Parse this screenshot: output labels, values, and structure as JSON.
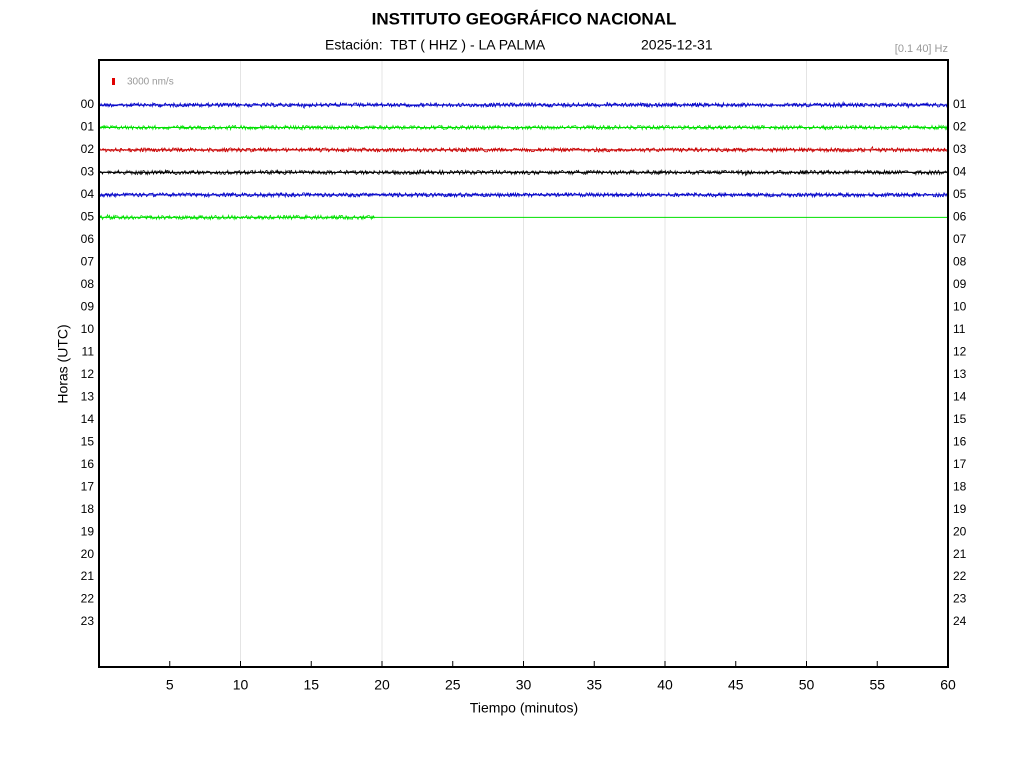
{
  "chart_data": {
    "type": "helicorder",
    "title": "INSTITUTO GEOGRÁFICO NACIONAL",
    "subtitle": "Estación:  TBT ( HHZ ) - LA PALMA",
    "date": "2025-12-31",
    "filter": "[0.1 40] Hz",
    "scale_label": "3000 nm/s",
    "scale_color": "#e00000",
    "xlabel": "Tiempo (minutos)",
    "ylabel": "Horas (UTC)",
    "xlim": [
      0,
      60
    ],
    "xticks": [
      5,
      10,
      15,
      20,
      25,
      30,
      35,
      40,
      45,
      50,
      55,
      60
    ],
    "xgrid": [
      10,
      20,
      30,
      40,
      50
    ],
    "ylim": [
      25,
      -2
    ],
    "yticks": [
      {
        "value": 0,
        "label": "00"
      },
      {
        "value": 1,
        "label": "01"
      },
      {
        "value": 2,
        "label": "02"
      },
      {
        "value": 3,
        "label": "03"
      },
      {
        "value": 4,
        "label": "04"
      },
      {
        "value": 5,
        "label": "05"
      },
      {
        "value": 6,
        "label": "06"
      },
      {
        "value": 7,
        "label": "07"
      },
      {
        "value": 8,
        "label": "08"
      },
      {
        "value": 9,
        "label": "09"
      },
      {
        "value": 10,
        "label": "10"
      },
      {
        "value": 11,
        "label": "11"
      },
      {
        "value": 12,
        "label": "12"
      },
      {
        "value": 13,
        "label": "13"
      },
      {
        "value": 14,
        "label": "14"
      },
      {
        "value": 15,
        "label": "15"
      },
      {
        "value": 16,
        "label": "16"
      },
      {
        "value": 17,
        "label": "17"
      },
      {
        "value": 18,
        "label": "18"
      },
      {
        "value": 19,
        "label": "19"
      },
      {
        "value": 20,
        "label": "20"
      },
      {
        "value": 21,
        "label": "21"
      },
      {
        "value": 22,
        "label": "22"
      },
      {
        "value": 23,
        "label": "23"
      }
    ],
    "y2lim": [
      25,
      -2
    ],
    "y2ticks": [
      {
        "value": 0,
        "label": "01"
      },
      {
        "value": 1,
        "label": "02"
      },
      {
        "value": 2,
        "label": "03"
      },
      {
        "value": 3,
        "label": "04"
      },
      {
        "value": 4,
        "label": "05"
      },
      {
        "value": 5,
        "label": "06"
      },
      {
        "value": 6,
        "label": "07"
      },
      {
        "value": 7,
        "label": "08"
      },
      {
        "value": 8,
        "label": "09"
      },
      {
        "value": 9,
        "label": "10"
      },
      {
        "value": 10,
        "label": "11"
      },
      {
        "value": 11,
        "label": "12"
      },
      {
        "value": 12,
        "label": "13"
      },
      {
        "value": 13,
        "label": "14"
      },
      {
        "value": 14,
        "label": "15"
      },
      {
        "value": 15,
        "label": "16"
      },
      {
        "value": 16,
        "label": "17"
      },
      {
        "value": 17,
        "label": "18"
      },
      {
        "value": 18,
        "label": "19"
      },
      {
        "value": 19,
        "label": "20"
      },
      {
        "value": 20,
        "label": "21"
      },
      {
        "value": 21,
        "label": "22"
      },
      {
        "value": 22,
        "label": "23"
      },
      {
        "value": 23,
        "label": "24"
      }
    ],
    "series": [
      {
        "color": "#0000c8",
        "noise": true,
        "x": [
          0,
          60
        ],
        "values": [
          0,
          0
        ]
      },
      {
        "color": "#00e000",
        "noise": true,
        "x": [
          0,
          60
        ],
        "values": [
          1,
          1
        ]
      },
      {
        "color": "#c80000",
        "noise": true,
        "x": [
          0,
          60
        ],
        "values": [
          2,
          2
        ]
      },
      {
        "color": "#000000",
        "noise": true,
        "x": [
          0,
          60
        ],
        "values": [
          3,
          3
        ]
      },
      {
        "color": "#0000c8",
        "noise": true,
        "x": [
          0,
          60
        ],
        "values": [
          4,
          4
        ]
      },
      {
        "color": "#00e000",
        "noise": true,
        "x": [
          0,
          19.5
        ],
        "values": [
          5,
          5
        ]
      },
      {
        "color": "#00e000",
        "noise": false,
        "x": [
          19.5,
          60
        ],
        "values": [
          5,
          5
        ]
      }
    ]
  }
}
